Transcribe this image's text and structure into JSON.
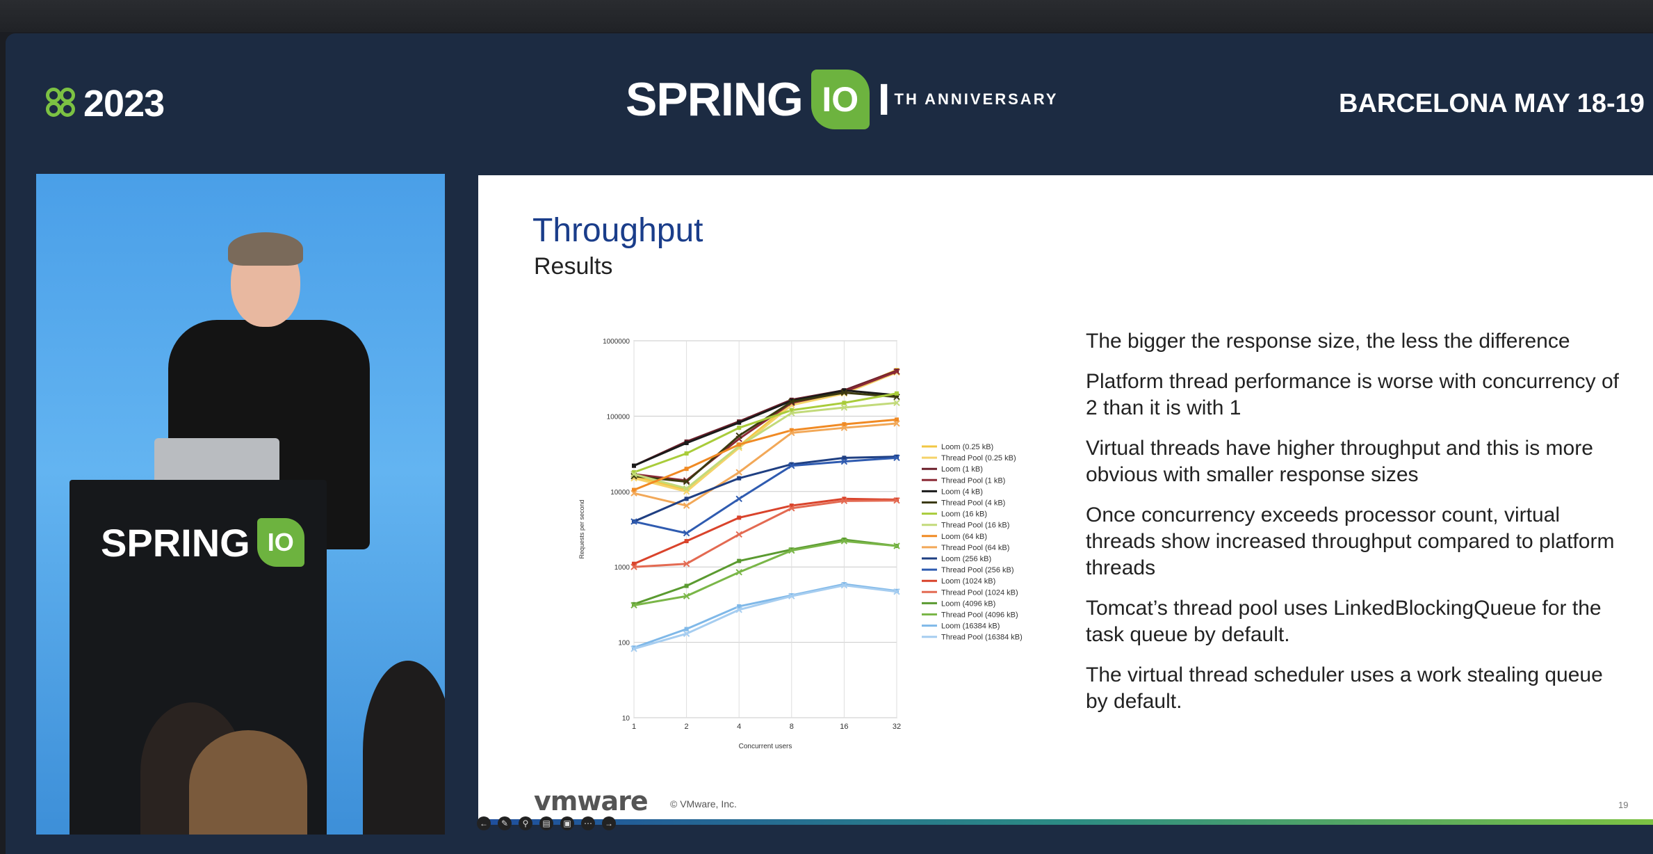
{
  "header": {
    "event_year": "2023",
    "logo_word": "SPRING",
    "logo_leaf_text": "IO",
    "logo_ten": "10",
    "anniversary_text": "TH ANNIVERSARY",
    "location_dates": "BARCELONA MAY 18-19"
  },
  "podium": {
    "logo_word": "SPRING",
    "logo_leaf_text": "IO"
  },
  "slide": {
    "title": "Throughput",
    "subtitle": "Results",
    "bullets": [
      "The bigger the response size, the less the difference",
      "Platform thread performance is worse with concurrency of 2 than it is with 1",
      "Virtual threads have higher throughput and this is more obvious with smaller response sizes",
      "Once concurrency exceeds processor count, virtual threads show increased throughput compared to platform threads",
      "Tomcat’s thread pool uses LinkedBlockingQueue for the task queue by default.",
      "The virtual thread scheduler uses a work stealing queue by default."
    ],
    "footer_brand": "vmware",
    "copyright": "© VMware, Inc.",
    "page_number": "19"
  },
  "chart_data": {
    "type": "line",
    "xlabel": "Concurrent users",
    "ylabel": "Requests per second",
    "x": [
      1,
      2,
      4,
      8,
      16,
      32
    ],
    "x_ticks": [
      "1",
      "2",
      "4",
      "8",
      "16",
      "32"
    ],
    "y_scale": "log",
    "ylim": [
      10,
      1000000
    ],
    "y_ticks": [
      "10",
      "100",
      "1000",
      "10000",
      "100000",
      "1000000"
    ],
    "grid": true,
    "legend_position": "right",
    "series": [
      {
        "name": "Loom (0.25 kB)",
        "color": "#f2c744",
        "values": [
          16000,
          10500,
          40000,
          150000,
          210000,
          410000
        ]
      },
      {
        "name": "Thread Pool (0.25 kB)",
        "color": "#f5d36a",
        "values": [
          15000,
          10000,
          38000,
          140000,
          200000,
          380000
        ]
      },
      {
        "name": "Loom (1 kB)",
        "color": "#6b1f2a",
        "values": [
          22000,
          46000,
          85000,
          165000,
          220000,
          400000
        ]
      },
      {
        "name": "Thread Pool (1 kB)",
        "color": "#8b2a36",
        "values": [
          17000,
          14000,
          50000,
          150000,
          210000,
          390000
        ]
      },
      {
        "name": "Loom (4 kB)",
        "color": "#1a1a1a",
        "values": [
          22000,
          44000,
          82000,
          160000,
          220000,
          190000
        ]
      },
      {
        "name": "Thread Pool (4 kB)",
        "color": "#3b3a10",
        "values": [
          16000,
          13500,
          55000,
          155000,
          205000,
          180000
        ]
      },
      {
        "name": "Loom (16 kB)",
        "color": "#a9cc3a",
        "values": [
          18000,
          32000,
          70000,
          120000,
          150000,
          200000
        ]
      },
      {
        "name": "Thread Pool (16 kB)",
        "color": "#c2da7a",
        "values": [
          17000,
          11000,
          40000,
          110000,
          130000,
          150000
        ]
      },
      {
        "name": "Loom (64 kB)",
        "color": "#f08a24",
        "values": [
          10500,
          20000,
          42000,
          65000,
          78000,
          90000
        ]
      },
      {
        "name": "Thread Pool (64 kB)",
        "color": "#f2a858",
        "values": [
          9500,
          6500,
          18000,
          60000,
          70000,
          80000
        ]
      },
      {
        "name": "Loom (256 kB)",
        "color": "#1f3f82",
        "values": [
          4000,
          8000,
          15000,
          23000,
          28000,
          29000
        ]
      },
      {
        "name": "Thread Pool (256 kB)",
        "color": "#2f5bb0",
        "values": [
          4000,
          2800,
          8000,
          22000,
          25000,
          28000
        ]
      },
      {
        "name": "Loom (1024 kB)",
        "color": "#d9432b",
        "values": [
          1100,
          2200,
          4500,
          6500,
          8000,
          7800
        ]
      },
      {
        "name": "Thread Pool (1024 kB)",
        "color": "#e36a52",
        "values": [
          1000,
          1100,
          2700,
          6000,
          7500,
          7600
        ]
      },
      {
        "name": "Loom (4096 kB)",
        "color": "#5a9a30",
        "values": [
          320,
          560,
          1200,
          1700,
          2300,
          1900
        ]
      },
      {
        "name": "Thread Pool (4096 kB)",
        "color": "#7ab648",
        "values": [
          310,
          410,
          850,
          1650,
          2200,
          1900
        ]
      },
      {
        "name": "Loom (16384 kB)",
        "color": "#7fb8e8",
        "values": [
          85,
          150,
          300,
          420,
          590,
          480
        ]
      },
      {
        "name": "Thread Pool (16384 kB)",
        "color": "#a6cdf0",
        "values": [
          82,
          130,
          270,
          410,
          570,
          470
        ]
      }
    ]
  }
}
